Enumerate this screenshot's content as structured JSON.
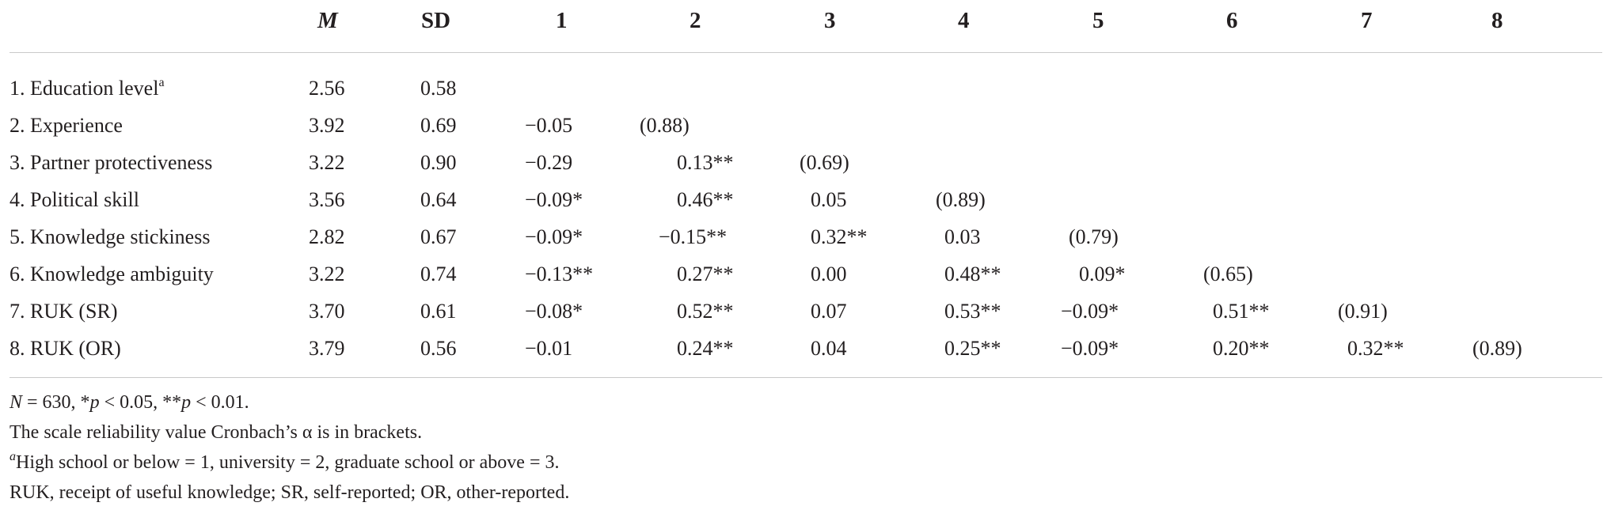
{
  "table": {
    "headers": [
      "M",
      "SD",
      "1",
      "2",
      "3",
      "4",
      "5",
      "6",
      "7",
      "8"
    ],
    "rows": [
      {
        "label": "1. Education level",
        "sup": "a",
        "M": "2.56",
        "SD": "0.58",
        "cells": [
          "",
          "",
          "",
          "",
          "",
          "",
          "",
          ""
        ]
      },
      {
        "label": "2. Experience",
        "sup": "",
        "M": "3.92",
        "SD": "0.69",
        "cells": [
          "−0.05",
          "(0.88)",
          "",
          "",
          "",
          "",
          "",
          ""
        ]
      },
      {
        "label": "3. Partner protectiveness",
        "sup": "",
        "M": "3.22",
        "SD": "0.90",
        "cells": [
          "−0.29",
          "0.13**",
          "(0.69)",
          "",
          "",
          "",
          "",
          ""
        ]
      },
      {
        "label": "4. Political skill",
        "sup": "",
        "M": "3.56",
        "SD": "0.64",
        "cells": [
          "−0.09*",
          "0.46**",
          "0.05",
          "(0.89)",
          "",
          "",
          "",
          ""
        ]
      },
      {
        "label": "5. Knowledge stickiness",
        "sup": "",
        "M": "2.82",
        "SD": "0.67",
        "cells": [
          "−0.09*",
          "−0.15**",
          "0.32**",
          "0.03",
          "(0.79)",
          "",
          "",
          ""
        ]
      },
      {
        "label": "6. Knowledge ambiguity",
        "sup": "",
        "M": "3.22",
        "SD": "0.74",
        "cells": [
          "−0.13**",
          "0.27**",
          "0.00",
          "0.48**",
          "0.09*",
          "(0.65)",
          "",
          ""
        ]
      },
      {
        "label": "7. RUK (SR)",
        "sup": "",
        "M": "3.70",
        "SD": "0.61",
        "cells": [
          "−0.08*",
          "0.52**",
          "0.07",
          "0.53**",
          "−0.09*",
          "0.51**",
          "(0.91)",
          ""
        ]
      },
      {
        "label": "8. RUK (OR)",
        "sup": "",
        "M": "3.79",
        "SD": "0.56",
        "cells": [
          "−0.01",
          "0.24**",
          "0.04",
          "0.25**",
          "−0.09*",
          "0.20**",
          "0.32**",
          "(0.89)"
        ]
      }
    ]
  },
  "notes": {
    "line1_n": "N",
    "line1_rest": " = 630, *",
    "line1_p1": "p",
    "line1_mid": " < 0.05, **",
    "line1_p2": "p",
    "line1_end": " < 0.01.",
    "line2": "The scale reliability value Cronbach’s α is in brackets.",
    "line3_sup": "a",
    "line3": "High school or below = 1, university = 2, graduate school or above = 3.",
    "line4": "RUK, receipt of useful knowledge; SR, self-reported; OR, other-reported."
  }
}
